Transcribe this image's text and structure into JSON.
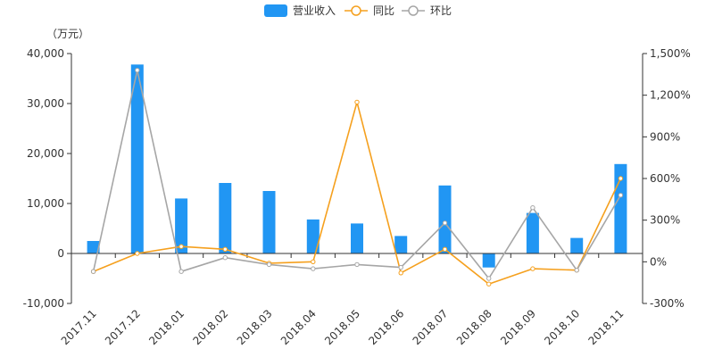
{
  "chart_data": {
    "type": "bar",
    "unit_label": "（万元）",
    "categories": [
      "2017.11",
      "2017.12",
      "2018.01",
      "2018.02",
      "2018.03",
      "2018.04",
      "2018.05",
      "2018.06",
      "2018.07",
      "2018.08",
      "2018.09",
      "2018.10",
      "2018.11"
    ],
    "series": [
      {
        "name": "营业收入",
        "type": "bar",
        "axis": "left",
        "color": "#2196f3",
        "values": [
          2500,
          37800,
          11000,
          14100,
          12500,
          6800,
          6000,
          3500,
          13600,
          -2800,
          8100,
          3100,
          17900
        ]
      },
      {
        "name": "同比",
        "type": "line",
        "axis": "right",
        "color": "#f5a01e",
        "values": [
          -70,
          60,
          110,
          90,
          -10,
          0,
          1150,
          -80,
          90,
          -160,
          -50,
          -60,
          600
        ]
      },
      {
        "name": "环比",
        "type": "line",
        "axis": "right",
        "color": "#a6a6a6",
        "values": [
          -70,
          1380,
          -70,
          30,
          -20,
          -50,
          -20,
          -40,
          280,
          -120,
          390,
          -60,
          480
        ]
      }
    ],
    "left_axis": {
      "min": -10000,
      "max": 40000,
      "ticks": [
        "-10,000",
        "0",
        "10,000",
        "20,000",
        "30,000",
        "40,000"
      ]
    },
    "right_axis": {
      "min": -300,
      "max": 1500,
      "ticks": [
        "-300%",
        "0%",
        "300%",
        "600%",
        "900%",
        "1,200%",
        "1,500%"
      ]
    },
    "grid": false,
    "legend_position": "top-center"
  }
}
